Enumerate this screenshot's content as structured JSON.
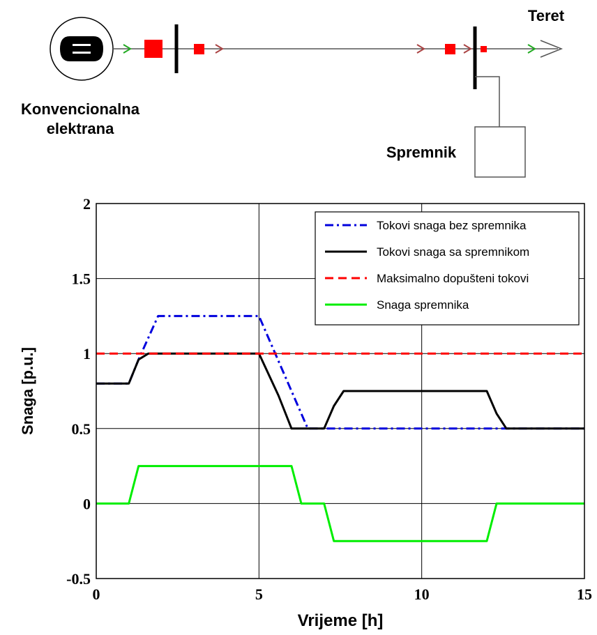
{
  "diagram": {
    "generator_label": [
      "Konvencionalna",
      "elektrana"
    ],
    "load_label": "Teret",
    "storage_label": "Spremnik"
  },
  "chart_data": {
    "type": "line",
    "title": "",
    "xlabel": "Vrijeme [h]",
    "ylabel": "Snaga [p.u.]",
    "xlim": [
      0,
      15
    ],
    "ylim": [
      -0.5,
      2
    ],
    "xticks": [
      0,
      5,
      10,
      15
    ],
    "xtick_labels": [
      "0",
      "5",
      "10",
      "15"
    ],
    "yticks": [
      -0.5,
      0,
      0.5,
      1,
      1.5,
      2
    ],
    "ytick_labels": [
      "-0.5",
      "0",
      "0.5",
      "1",
      "1.5",
      "2"
    ],
    "grid": true,
    "legend_position": "top-right",
    "series": [
      {
        "name": "Tokovi snaga bez spremnika",
        "color": "#0000dd",
        "style": "dash-dot",
        "x": [
          0,
          1,
          1.3,
          1.9,
          5,
          6.5,
          15
        ],
        "y": [
          0.8,
          0.8,
          0.96,
          1.25,
          1.25,
          0.5,
          0.5
        ]
      },
      {
        "name": "Tokovi snaga sa spremnikom",
        "color": "#000000",
        "style": "solid",
        "x": [
          0,
          1,
          1.3,
          1.6,
          5,
          5.6,
          6,
          7,
          7.3,
          7.6,
          12,
          12.3,
          12.6,
          15
        ],
        "y": [
          0.8,
          0.8,
          0.96,
          1,
          1,
          0.72,
          0.5,
          0.5,
          0.65,
          0.75,
          0.75,
          0.6,
          0.5,
          0.5
        ]
      },
      {
        "name": "Maksimalno dopušteni tokovi",
        "color": "#ff0000",
        "style": "dashed",
        "x": [
          0,
          15
        ],
        "y": [
          1,
          1
        ]
      },
      {
        "name": "Snaga spremnika",
        "color": "#00ee00",
        "style": "solid",
        "x": [
          0,
          1,
          1.3,
          6,
          6.3,
          7,
          7.3,
          12,
          12.3,
          15
        ],
        "y": [
          0,
          0,
          0.25,
          0.25,
          0,
          0,
          -0.25,
          -0.25,
          0,
          0
        ]
      }
    ]
  }
}
